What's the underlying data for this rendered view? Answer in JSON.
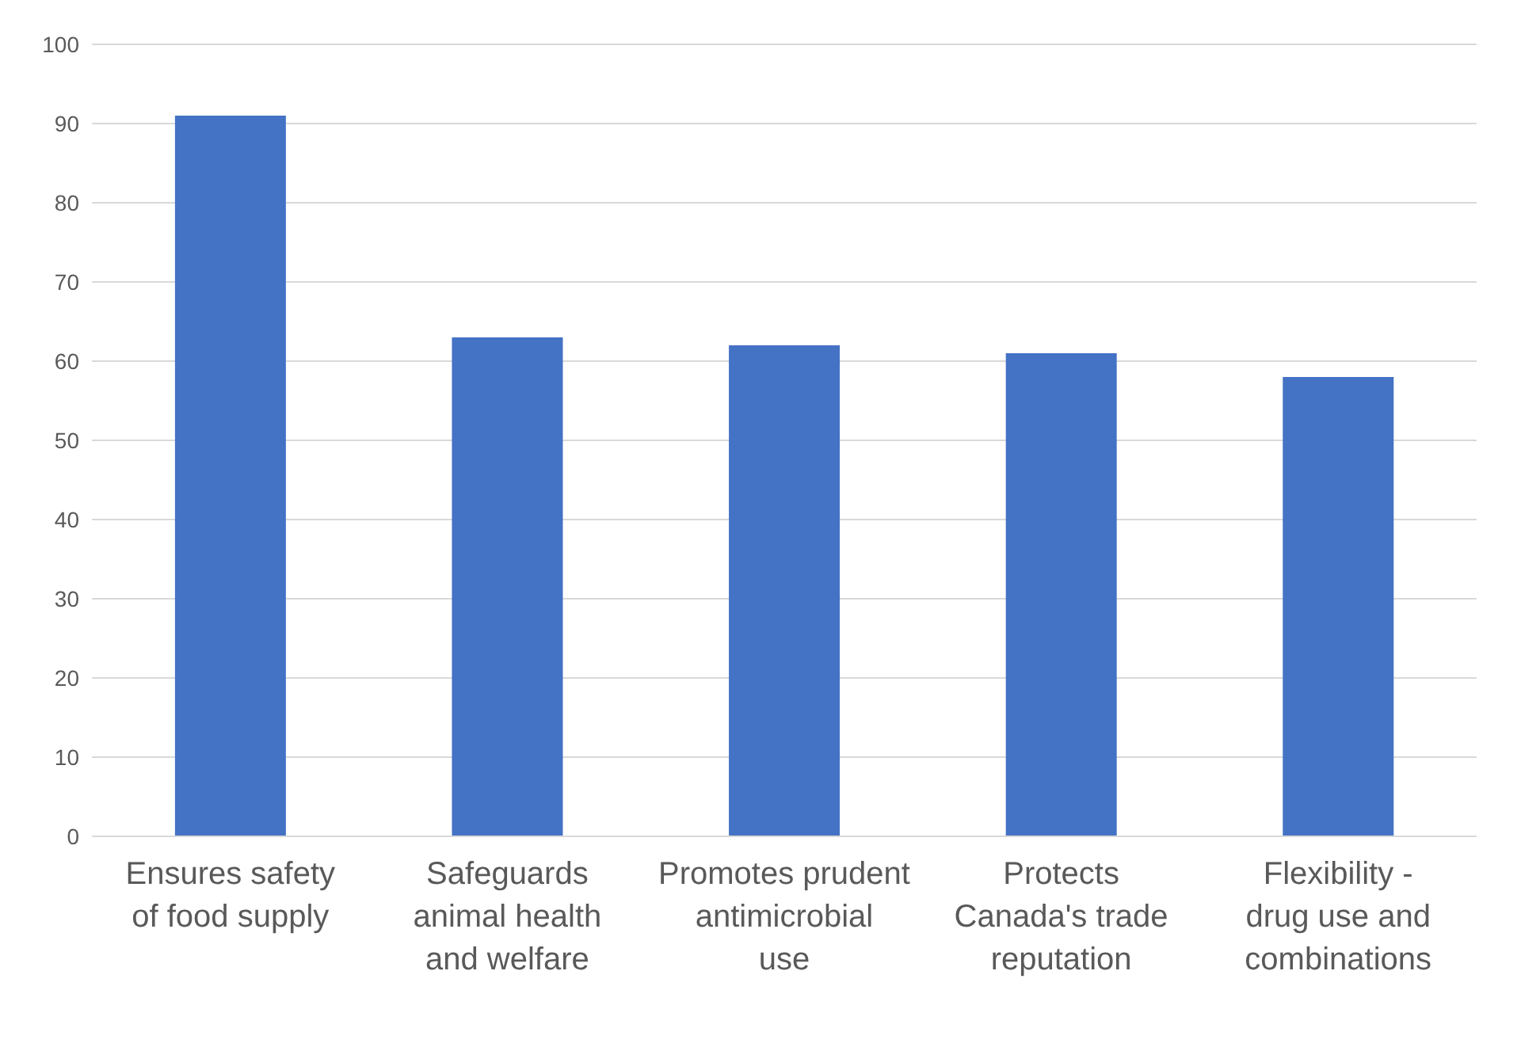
{
  "chart_data": {
    "type": "bar",
    "categories": [
      "Ensures safety of food supply",
      "Safeguards animal health and welfare",
      "Promotes prudent antimicrobial use",
      "Protects Canada's trade reputation",
      "Flexibility - drug use and combinations"
    ],
    "values": [
      91,
      63,
      62,
      61,
      58
    ],
    "color": "#4472c4",
    "ylim": [
      0,
      100
    ],
    "yticks": [
      0,
      10,
      20,
      30,
      40,
      50,
      60,
      70,
      80,
      90,
      100
    ],
    "grid": "y"
  }
}
